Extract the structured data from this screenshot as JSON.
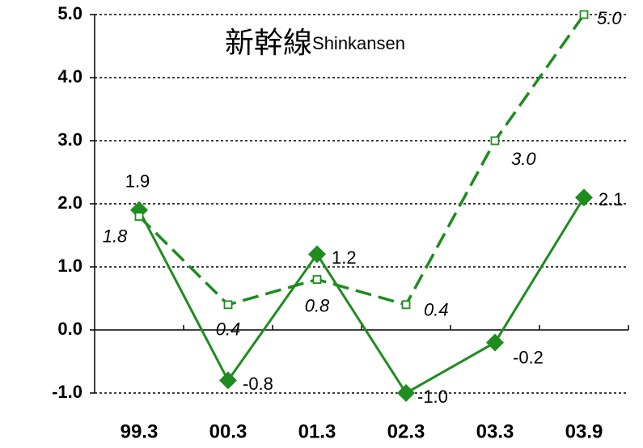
{
  "chart_data": {
    "type": "line",
    "title": "新幹線",
    "subtitle": "Shinkansen",
    "categories": [
      "99.3",
      "00.3",
      "01.3",
      "02.3",
      "03.3",
      "03.9"
    ],
    "series": [
      {
        "color": "#1e8c1e",
        "style": "solid",
        "marker": "diamond",
        "values": [
          1.9,
          -0.8,
          1.2,
          -1.0,
          -0.2,
          2.1
        ],
        "value_labels": [
          "1.9",
          "-0.8",
          "1.2",
          "-1.0",
          "-0.2",
          "2.1"
        ]
      },
      {
        "color": "#1e8c1e",
        "style": "dashed",
        "marker": "square",
        "values": [
          1.8,
          0.4,
          0.8,
          0.4,
          3.0,
          5.0
        ],
        "value_labels": [
          "1.8",
          "0.4",
          "0.8",
          "0.4",
          "3.0",
          "5.0"
        ]
      }
    ],
    "ylim": [
      -1,
      5
    ],
    "yticks": [
      {
        "value": -1,
        "label": "-1.0"
      },
      {
        "value": 0,
        "label": "0.0"
      },
      {
        "value": 1,
        "label": "1.0"
      },
      {
        "value": 2,
        "label": "2.0"
      },
      {
        "value": 3,
        "label": "3.0"
      },
      {
        "value": 4,
        "label": "4.0"
      },
      {
        "value": 5,
        "label": "5.0"
      }
    ],
    "grid": true
  }
}
